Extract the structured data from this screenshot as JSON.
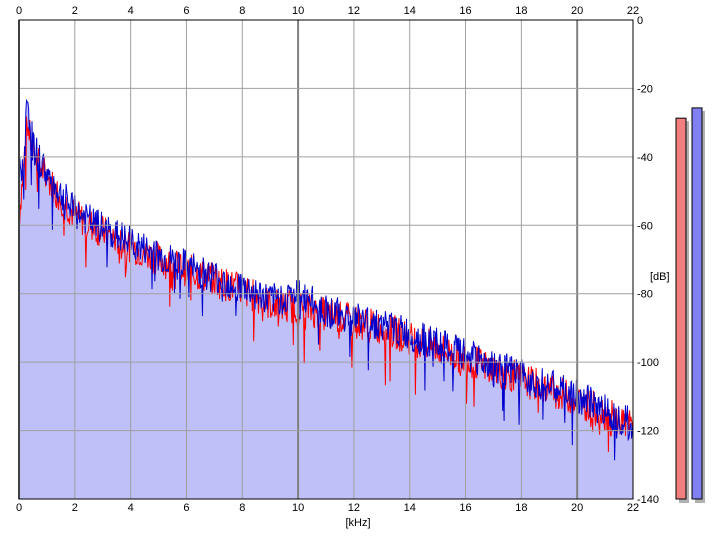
{
  "chart_data": {
    "type": "area",
    "xlabel": "[kHz]",
    "ylabel": "[dB]",
    "xlim": [
      0,
      22
    ],
    "ylim": [
      -140,
      0
    ],
    "x_ticks": [
      "0",
      "2",
      "4",
      "6",
      "8",
      "10",
      "12",
      "14",
      "16",
      "18",
      "20",
      "22"
    ],
    "y_ticks": [
      "0",
      "-20",
      "-40",
      "-60",
      "-80",
      "-100",
      "-120",
      "-140"
    ],
    "grid": true,
    "series": [
      {
        "color": "#ff0000",
        "x": [
          0,
          0.15,
          0.3,
          0.5,
          1,
          1.5,
          2,
          3,
          4,
          5,
          6,
          7,
          8,
          9,
          10,
          11,
          12,
          13,
          14,
          15,
          16,
          17,
          18,
          19,
          20,
          21,
          22
        ],
        "y": [
          -58,
          -44,
          -30,
          -39,
          -46,
          -52,
          -57,
          -62,
          -66,
          -70,
          -73,
          -76,
          -79,
          -83,
          -84,
          -86,
          -88,
          -90,
          -93,
          -96,
          -99,
          -102,
          -105,
          -108,
          -111,
          -115,
          -119
        ]
      },
      {
        "color": "#0000cc",
        "x": [
          0,
          0.15,
          0.3,
          0.5,
          1,
          1.5,
          2,
          3,
          4,
          5,
          6,
          7,
          8,
          9,
          10,
          11,
          12,
          13,
          14,
          15,
          16,
          17,
          18,
          19,
          20,
          21,
          22
        ],
        "y": [
          -45,
          -42,
          -23,
          -37,
          -45,
          -51,
          -56,
          -61,
          -65,
          -69,
          -72,
          -75,
          -78,
          -82,
          -80,
          -85,
          -87,
          -89,
          -92,
          -95,
          -98,
          -101,
          -104,
          -107,
          -110,
          -114,
          -118
        ]
      }
    ],
    "level_meters": [
      {
        "color": "#f08080",
        "value_db": -17
      },
      {
        "color": "#8080f0",
        "value_db": -14
      }
    ],
    "fill_color": "#c0c0f8"
  }
}
